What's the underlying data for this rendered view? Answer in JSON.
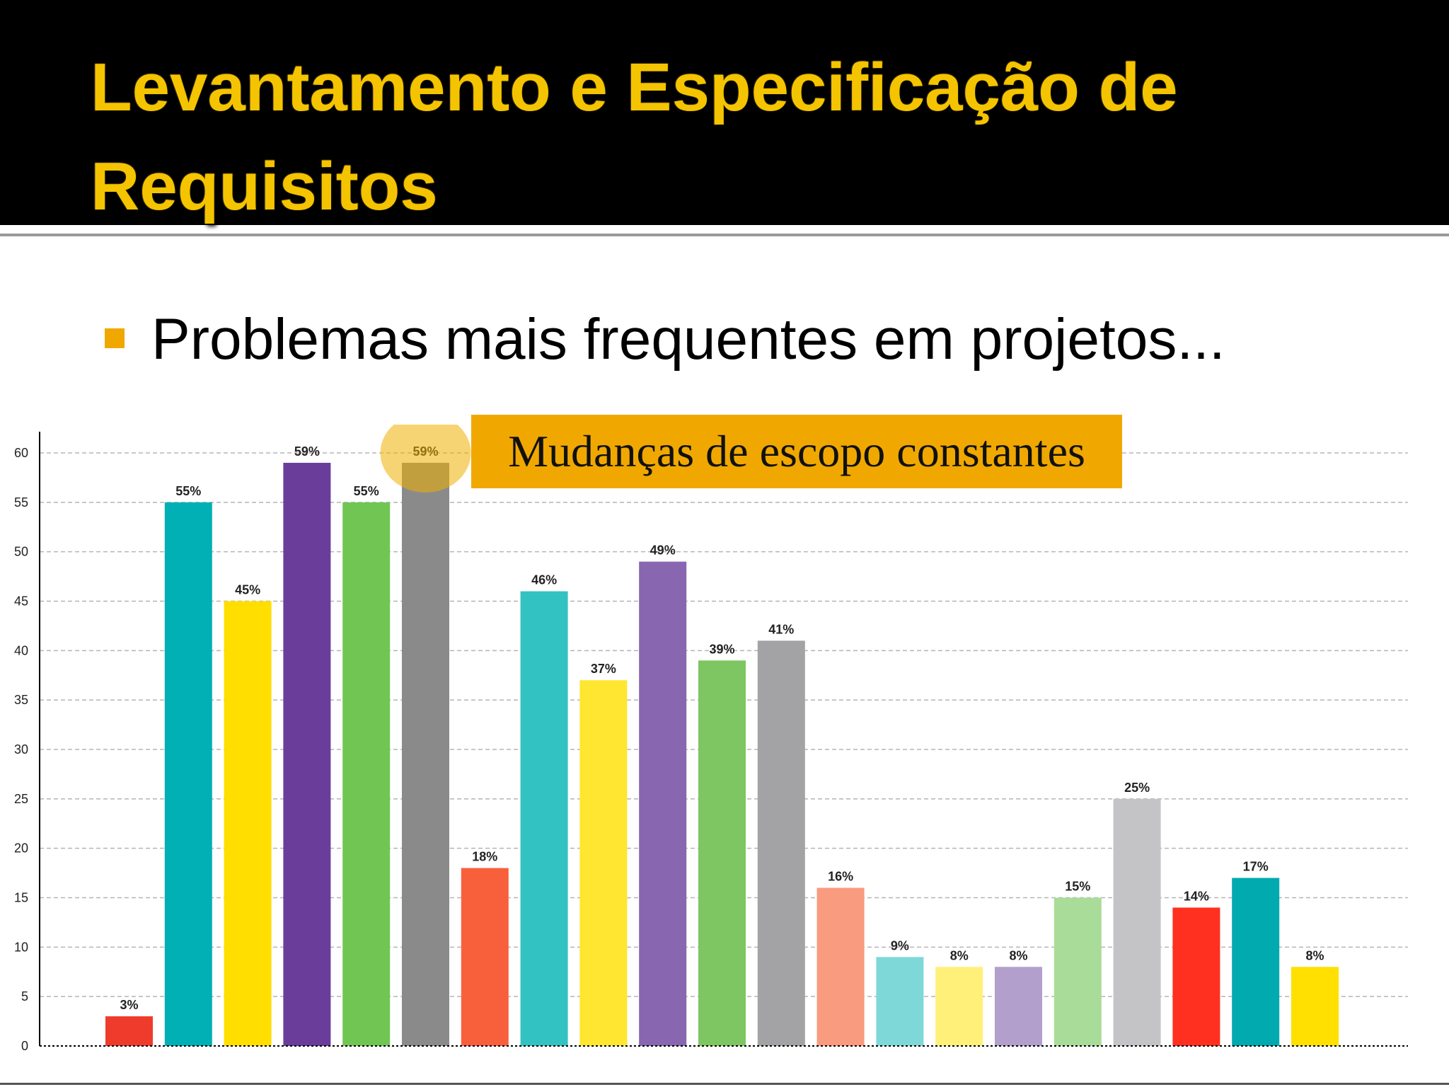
{
  "slide": {
    "title": "Levantamento e Especificação de Requisitos",
    "bullet": "Problemas mais frequentes em projetos...",
    "callout": "Mudanças de escopo constantes",
    "accent_color": "#f5c400"
  },
  "chart_data": {
    "type": "bar",
    "title": "",
    "xlabel": "",
    "ylabel": "",
    "ylim": [
      0,
      60
    ],
    "yticks": [
      "0",
      "5",
      "10",
      "15",
      "20",
      "25",
      "30",
      "35",
      "40",
      "45",
      "50",
      "55",
      "60"
    ],
    "grid": true,
    "highlighted_index": 5,
    "values": [
      3,
      55,
      45,
      59,
      55,
      59,
      18,
      46,
      37,
      49,
      39,
      41,
      16,
      9,
      8,
      8,
      15,
      25,
      14,
      17,
      8
    ],
    "labels": [
      "3%",
      "55%",
      "45%",
      "59%",
      "55%",
      "59%",
      "18%",
      "46%",
      "37%",
      "49%",
      "39%",
      "41%",
      "16%",
      "9%",
      "8%",
      "8%",
      "15%",
      "25%",
      "14%",
      "17%",
      "8%"
    ],
    "colors": [
      "#ef3b2c",
      "#00b0b4",
      "#ffde00",
      "#6a3d9a",
      "#71c653",
      "#8a8a8a",
      "#f8603c",
      "#33c2c2",
      "#ffe630",
      "#8866b0",
      "#7dc662",
      "#a3a3a5",
      "#f99b7f",
      "#7fd8d8",
      "#fff07a",
      "#b29fcc",
      "#a9dc98",
      "#c4c3c5",
      "#ff3020",
      "#00aaaf",
      "#ffe000"
    ]
  }
}
